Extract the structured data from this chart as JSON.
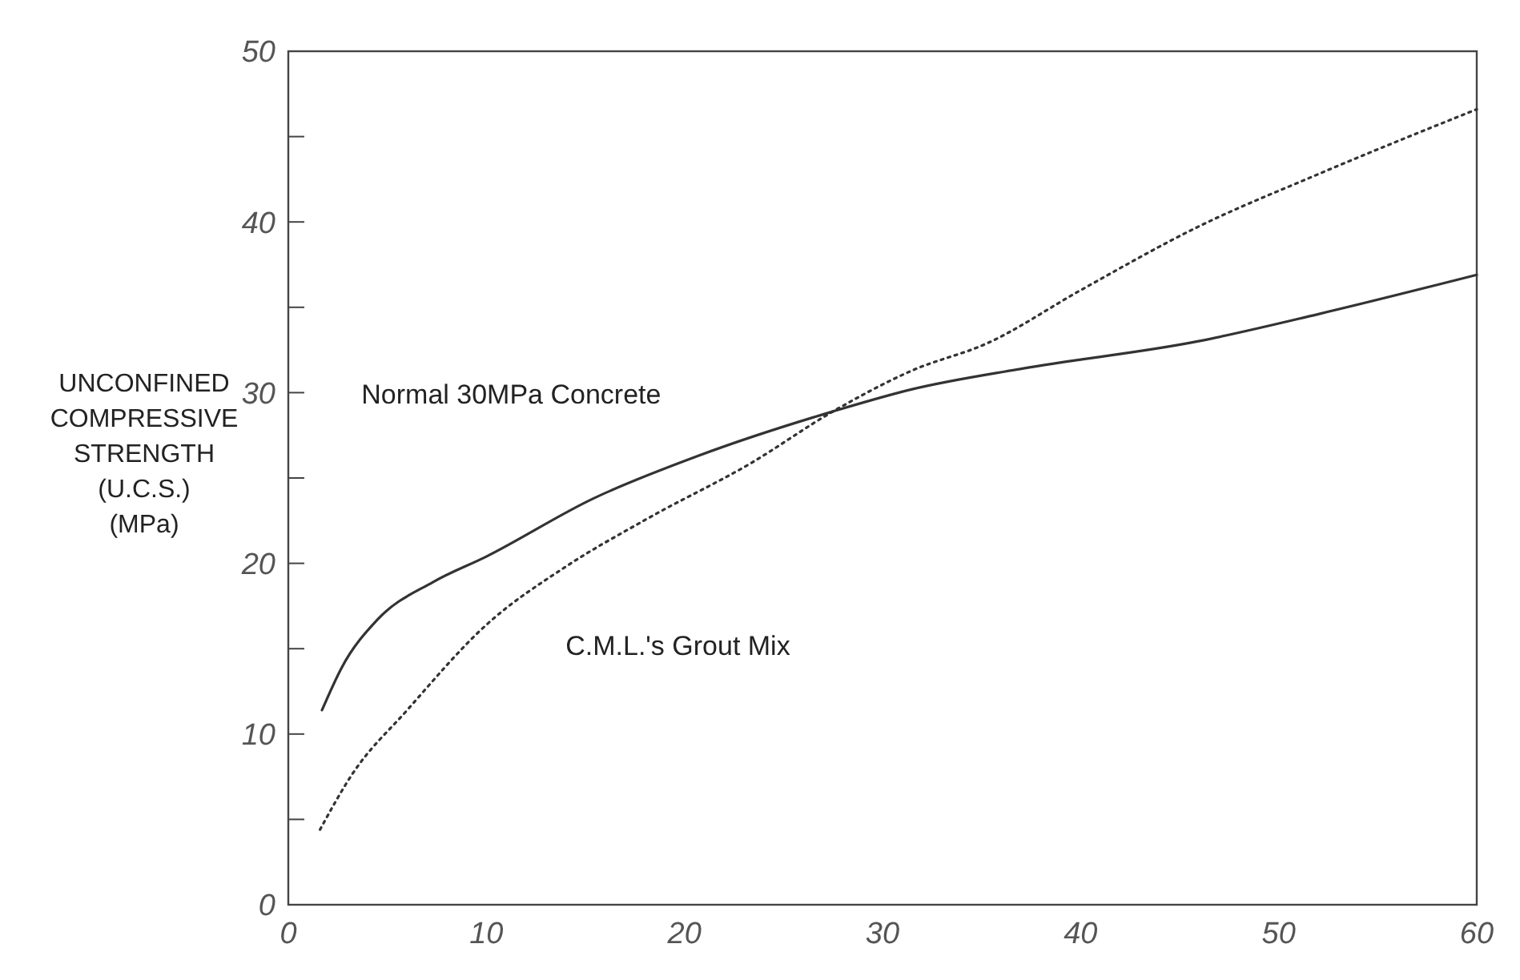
{
  "chart_data": {
    "type": "line",
    "ylabel": "UNCONFINED\nCOMPRESSIVE\nSTRENGTH\n(U.C.S.)\n(MPa)",
    "xlim": [
      0,
      60
    ],
    "xticks": [
      0,
      10,
      20,
      30,
      40,
      50,
      60
    ],
    "ylim": [
      0,
      50
    ],
    "yticks": [
      0,
      {
        "value": 5,
        "label": null
      },
      10,
      {
        "value": 15,
        "label": null
      },
      20,
      {
        "value": 25,
        "label": null
      },
      30,
      {
        "value": 35,
        "label": null
      },
      40,
      {
        "value": 45,
        "label": null
      },
      50
    ],
    "grid": false,
    "series": [
      {
        "name": "Normal 30MPa Concrete",
        "color": "#333333",
        "line_style": "solid",
        "x": [
          1.7,
          2.7,
          4.5,
          7.3,
          10,
          15.4,
          20.7,
          27.5,
          31.5,
          37,
          45.9,
          52,
          60
        ],
        "values": [
          11.4,
          13.9,
          16.7,
          18.9,
          20.4,
          23.8,
          26.3,
          28.9,
          30.2,
          31.4,
          33,
          34.6,
          36.9
        ]
      },
      {
        "name": "C.M.L.'s Grout Mix",
        "color": "#333333",
        "line_style": "dotted",
        "x": [
          1.6,
          3.2,
          6,
          10,
          14,
          18.1,
          23.4,
          27.5,
          31.5,
          35.3,
          40,
          45.9,
          52,
          60
        ],
        "values": [
          4.4,
          7.6,
          11.4,
          16.4,
          19.8,
          22.6,
          25.9,
          28.9,
          31.3,
          32.9,
          36,
          39.7,
          42.8,
          46.6
        ]
      }
    ]
  }
}
